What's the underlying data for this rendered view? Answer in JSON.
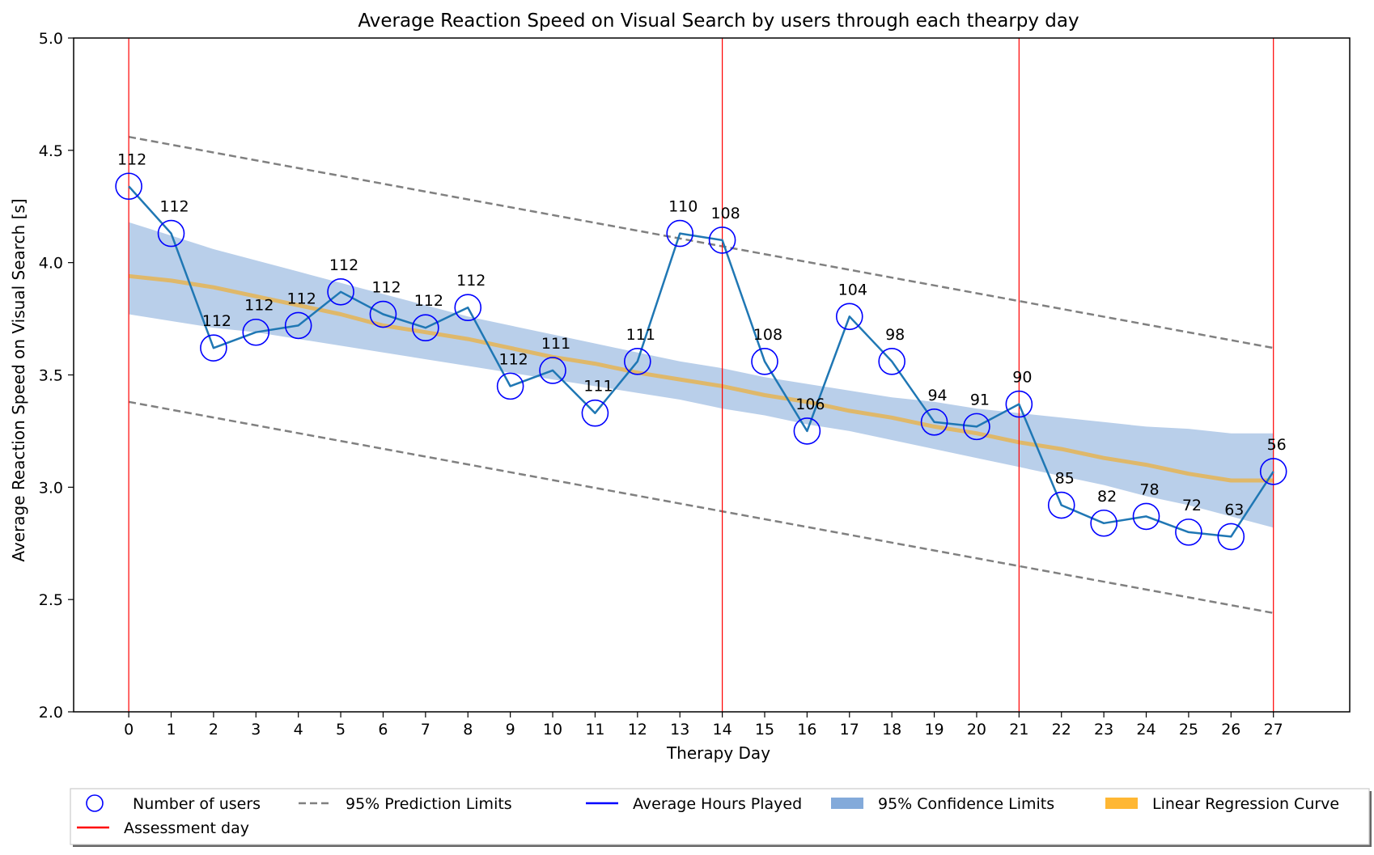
{
  "chart_data": {
    "type": "line",
    "title": "Average Reaction Speed on Visual Search by users through each thearpy day",
    "xlabel": "Therapy Day",
    "ylabel": "Average Reaction Speed on Visual Search [s]",
    "x": [
      0,
      1,
      2,
      3,
      4,
      5,
      6,
      7,
      8,
      9,
      10,
      11,
      12,
      13,
      14,
      15,
      16,
      17,
      18,
      19,
      20,
      21,
      22,
      23,
      24,
      25,
      26,
      27
    ],
    "xlim": [
      -1.3,
      28.8
    ],
    "ylim": [
      2.0,
      5.0
    ],
    "y_ticks": [
      2.0,
      2.5,
      3.0,
      3.5,
      4.0,
      4.5,
      5.0
    ],
    "grid": false,
    "series": [
      {
        "name": "Average Hours Played",
        "kind": "line",
        "color": "#1f77b4",
        "values": [
          4.34,
          4.13,
          3.62,
          3.69,
          3.72,
          3.87,
          3.77,
          3.71,
          3.8,
          3.45,
          3.52,
          3.33,
          3.56,
          4.13,
          4.1,
          3.56,
          3.25,
          3.76,
          3.56,
          3.29,
          3.27,
          3.37,
          2.92,
          2.84,
          2.87,
          2.8,
          2.78,
          3.07
        ]
      },
      {
        "name": "Number of users",
        "kind": "point-labels",
        "marker_color": "#0000ff",
        "labels": [
          "112",
          "112",
          "112",
          "112",
          "112",
          "112",
          "112",
          "112",
          "112",
          "112",
          "111",
          "111",
          "111",
          "110",
          "108",
          "108",
          "106",
          "104",
          "98",
          "94",
          "91",
          "90",
          "85",
          "82",
          "78",
          "72",
          "63",
          "56"
        ]
      },
      {
        "name": "Linear Regression Curve",
        "kind": "line",
        "color": "#ffa500",
        "values": [
          3.94,
          3.92,
          3.89,
          3.85,
          3.81,
          3.77,
          3.72,
          3.69,
          3.66,
          3.62,
          3.58,
          3.55,
          3.51,
          3.48,
          3.45,
          3.41,
          3.38,
          3.34,
          3.31,
          3.27,
          3.24,
          3.2,
          3.17,
          3.13,
          3.1,
          3.06,
          3.03,
          3.03
        ]
      },
      {
        "name": "95% Confidence Limits",
        "kind": "band",
        "color": "#6d9bd3",
        "upper": [
          4.18,
          4.12,
          4.06,
          4.01,
          3.96,
          3.91,
          3.86,
          3.81,
          3.76,
          3.72,
          3.68,
          3.64,
          3.6,
          3.56,
          3.53,
          3.49,
          3.46,
          3.43,
          3.4,
          3.38,
          3.35,
          3.33,
          3.31,
          3.29,
          3.27,
          3.26,
          3.24,
          3.24
        ],
        "lower": [
          3.77,
          3.74,
          3.71,
          3.69,
          3.66,
          3.63,
          3.6,
          3.57,
          3.54,
          3.51,
          3.48,
          3.45,
          3.42,
          3.39,
          3.35,
          3.32,
          3.28,
          3.25,
          3.21,
          3.17,
          3.13,
          3.09,
          3.05,
          3.01,
          2.96,
          2.92,
          2.87,
          2.82
        ]
      },
      {
        "name": "95% Prediction Limits",
        "kind": "dashed-lines",
        "color": "#808080",
        "upper": [
          4.56,
          3.62
        ],
        "lower": [
          3.38,
          2.44
        ]
      },
      {
        "name": "Assessment day",
        "kind": "vlines",
        "color": "#ff0000",
        "x": [
          0,
          14,
          21,
          27
        ]
      }
    ],
    "legend": {
      "position": "bottom",
      "entries": [
        {
          "label": "Number of users",
          "marker": "circle-icon"
        },
        {
          "label": "95% Prediction Limits",
          "marker": "dashed-line-icon"
        },
        {
          "label": "Average Hours Played",
          "marker": "blue-line-icon"
        },
        {
          "label": "95% Confidence Limits",
          "marker": "blue-patch-icon"
        },
        {
          "label": "Linear Regression Curve",
          "marker": "orange-patch-icon"
        },
        {
          "label": "Assessment day",
          "marker": "red-line-icon"
        }
      ]
    }
  }
}
